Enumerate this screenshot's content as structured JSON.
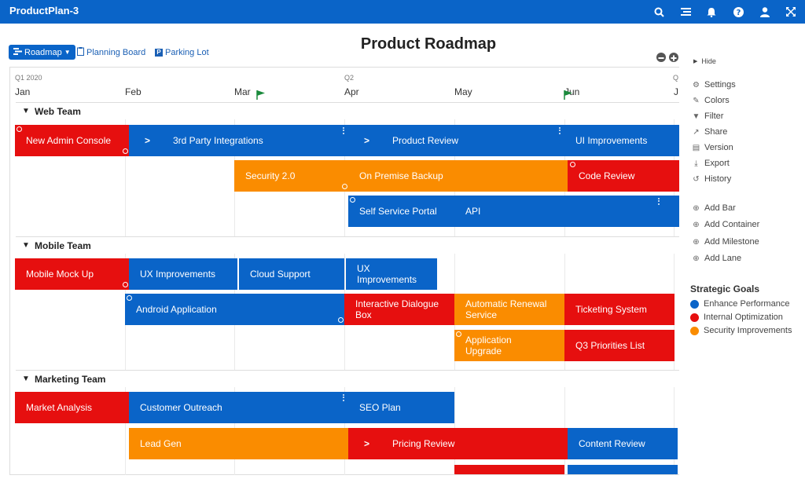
{
  "app": {
    "title": "ProductPlan-3"
  },
  "topbar_icons": [
    "search-icon",
    "menu-lines-icon",
    "bell-icon",
    "help-icon",
    "user-icon",
    "expand-icon"
  ],
  "toolbar": {
    "roadmap_label": "Roadmap",
    "planning_board_label": "Planning Board",
    "parking_lot_label": "Parking Lot"
  },
  "page": {
    "title": "Product Roadmap"
  },
  "timeline": {
    "quarters": [
      "Q1 2020",
      "Q2",
      "Q"
    ],
    "months": [
      "Jan",
      "Feb",
      "Mar",
      "Apr",
      "May",
      "Jun",
      "J"
    ]
  },
  "lanes": [
    {
      "name": "Web Team"
    },
    {
      "name": "Mobile Team"
    },
    {
      "name": "Marketing Team"
    }
  ],
  "bars": {
    "web": [
      "New Admin Console",
      "3rd Party Integrations",
      "Product Review",
      "UI Improvements",
      "Security 2.0",
      "On Premise Backup",
      "Code Review",
      "Self Service Portal",
      "API"
    ],
    "mobile": [
      "Mobile Mock Up",
      "UX Improvements",
      "Cloud Support",
      "UX Improvements",
      "Android Application",
      "Interactive Dialogue Box",
      "Automatic Renewal Service",
      "Ticketing System",
      "Application Upgrade",
      "Q3 Priorities List"
    ],
    "marketing": [
      "Market Analysis",
      "Customer Outreach",
      "SEO Plan",
      "Lead Gen",
      "Pricing Review",
      "Content Review"
    ]
  },
  "panel": {
    "hide_label": "Hide",
    "settings": [
      "Settings",
      "Colors",
      "Filter",
      "Share",
      "Version",
      "Export",
      "History"
    ],
    "actions": [
      "Add Bar",
      "Add Container",
      "Add Milestone",
      "Add Lane"
    ],
    "goals_title": "Strategic Goals",
    "goals": [
      {
        "label": "Enhance Performance",
        "color": "#0a64c8"
      },
      {
        "label": "Internal Optimization",
        "color": "#e60f0f"
      },
      {
        "label": "Security Improvements",
        "color": "#fa8c00"
      }
    ]
  },
  "colors": {
    "blue": "#0a64c8",
    "red": "#e60f0f",
    "orange": "#fa8c00",
    "topbar": "#0a64c8"
  }
}
